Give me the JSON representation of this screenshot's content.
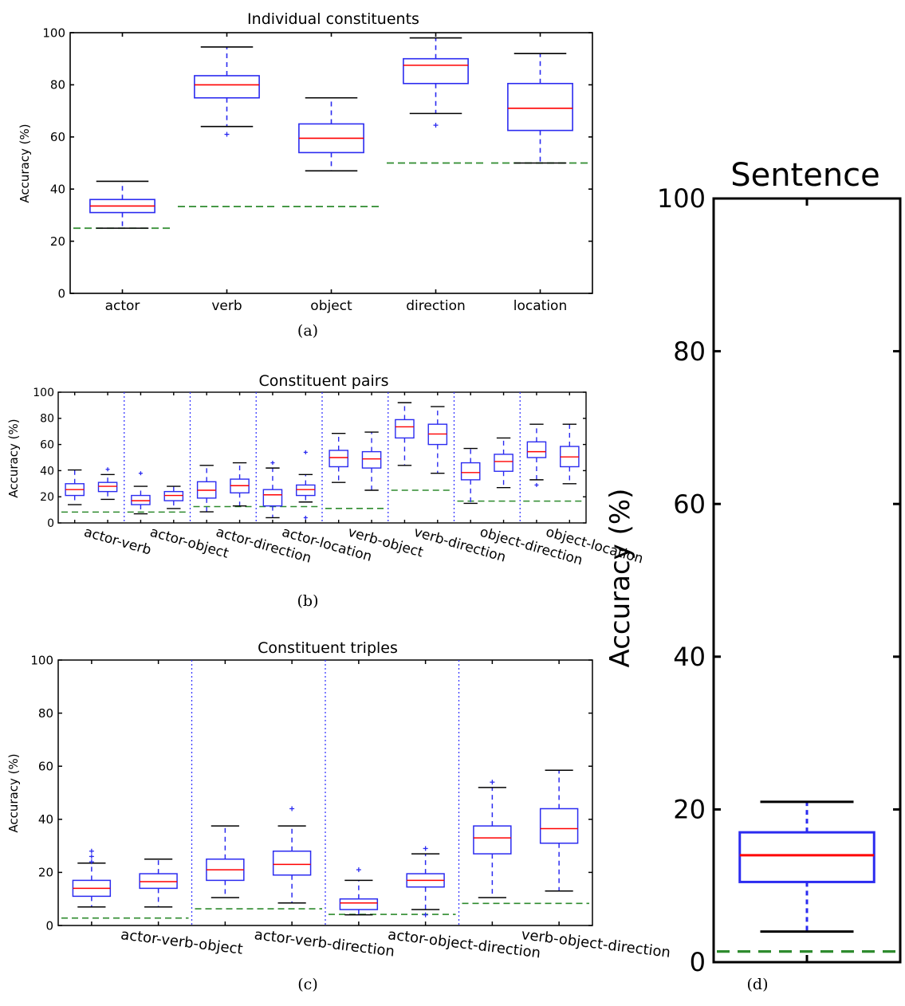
{
  "chart_data": [
    {
      "panel": "a",
      "type": "box",
      "title": "Individual constituents",
      "ylabel": "Accuracy (%)",
      "ylim": [
        0,
        100
      ],
      "yticks": [
        "0",
        "20",
        "40",
        "60",
        "80",
        "100"
      ],
      "caption": "(a)",
      "categories": [
        "actor",
        "verb",
        "object",
        "direction",
        "location"
      ],
      "boxes": [
        {
          "wlo": 25,
          "q1": 31,
          "med": 33.5,
          "q3": 36,
          "whi": 43,
          "outliers": []
        },
        {
          "wlo": 64,
          "q1": 75,
          "med": 80,
          "q3": 83.5,
          "whi": 94.5,
          "outliers": [
            61
          ]
        },
        {
          "wlo": 47,
          "q1": 54,
          "med": 59.5,
          "q3": 65,
          "whi": 75,
          "outliers": []
        },
        {
          "wlo": 69,
          "q1": 80.5,
          "med": 87.5,
          "q3": 90,
          "whi": 98,
          "outliers": [
            64.5
          ]
        },
        {
          "wlo": 50,
          "q1": 62.5,
          "med": 71,
          "q3": 80.5,
          "whi": 92,
          "outliers": []
        }
      ],
      "chance": [
        25,
        33.3,
        33.3,
        50,
        50
      ]
    },
    {
      "panel": "b",
      "type": "box",
      "title": "Constituent pairs",
      "ylabel": "Accuracy (%)",
      "ylim": [
        0,
        100
      ],
      "yticks": [
        "0",
        "20",
        "40",
        "60",
        "80",
        "100"
      ],
      "caption": "(b)",
      "categories": [
        "actor-verb",
        "actor-object",
        "actor-direction",
        "actor-location",
        "verb-object",
        "verb-direction",
        "object-direction",
        "object-location"
      ],
      "boxes": [
        {
          "wlo": 14,
          "q1": 21,
          "med": 25.5,
          "q3": 30,
          "whi": 40.5,
          "outliers": []
        },
        {
          "wlo": 18,
          "q1": 24,
          "med": 28,
          "q3": 31,
          "whi": 37,
          "outliers": [
            41
          ]
        },
        {
          "wlo": 7,
          "q1": 14,
          "med": 17,
          "q3": 21,
          "whi": 28,
          "outliers": [
            38
          ]
        },
        {
          "wlo": 11,
          "q1": 17,
          "med": 21,
          "q3": 24,
          "whi": 28,
          "outliers": []
        },
        {
          "wlo": 8.5,
          "q1": 19,
          "med": 25,
          "q3": 31.5,
          "whi": 44,
          "outliers": []
        },
        {
          "wlo": 13,
          "q1": 23,
          "med": 28.5,
          "q3": 33.5,
          "whi": 46,
          "outliers": []
        },
        {
          "wlo": 4,
          "q1": 13,
          "med": 21.5,
          "q3": 25.5,
          "whi": 42,
          "outliers": [
            46
          ]
        },
        {
          "wlo": 16,
          "q1": 21,
          "med": 25.5,
          "q3": 29,
          "whi": 37,
          "outliers": [
            54,
            4
          ]
        },
        {
          "wlo": 31,
          "q1": 43,
          "med": 50,
          "q3": 55.5,
          "whi": 68.5,
          "outliers": []
        },
        {
          "wlo": 25,
          "q1": 42,
          "med": 49,
          "q3": 54.5,
          "whi": 69.5,
          "outliers": []
        },
        {
          "wlo": 44,
          "q1": 65,
          "med": 73.5,
          "q3": 79,
          "whi": 92,
          "outliers": []
        },
        {
          "wlo": 38,
          "q1": 60,
          "med": 68,
          "q3": 75.5,
          "whi": 89,
          "outliers": []
        },
        {
          "wlo": 15,
          "q1": 33,
          "med": 38.5,
          "q3": 46,
          "whi": 57,
          "outliers": []
        },
        {
          "wlo": 27,
          "q1": 39.5,
          "med": 47,
          "q3": 52.5,
          "whi": 65,
          "outliers": []
        },
        {
          "wlo": 33,
          "q1": 50,
          "med": 54.5,
          "q3": 62,
          "whi": 75.5,
          "outliers": [
            29
          ]
        },
        {
          "wlo": 30,
          "q1": 43,
          "med": 50.5,
          "q3": 58.5,
          "whi": 75.5,
          "outliers": []
        }
      ],
      "chance": [
        8.3,
        8.3,
        12.5,
        12.5,
        11.1,
        25,
        16.7,
        16.7
      ]
    },
    {
      "panel": "c",
      "type": "box",
      "title": "Constituent triples",
      "ylabel": "Accuracy (%)",
      "ylim": [
        0,
        100
      ],
      "yticks": [
        "0",
        "20",
        "40",
        "60",
        "80",
        "100"
      ],
      "caption": "(c)",
      "categories": [
        "actor-verb-object",
        "actor-verb-direction",
        "actor-object-direction",
        "verb-object-direction"
      ],
      "boxes": [
        {
          "wlo": 7,
          "q1": 11,
          "med": 14,
          "q3": 17,
          "whi": 23.5,
          "outliers": [
            28,
            26,
            24
          ]
        },
        {
          "wlo": 7,
          "q1": 14,
          "med": 16.5,
          "q3": 19.5,
          "whi": 25,
          "outliers": []
        },
        {
          "wlo": 10.5,
          "q1": 17,
          "med": 21,
          "q3": 25,
          "whi": 37.5,
          "outliers": []
        },
        {
          "wlo": 8.5,
          "q1": 19,
          "med": 23,
          "q3": 28,
          "whi": 37.5,
          "outliers": [
            44
          ]
        },
        {
          "wlo": 4,
          "q1": 6,
          "med": 8.5,
          "q3": 10,
          "whi": 17,
          "outliers": [
            21
          ]
        },
        {
          "wlo": 6,
          "q1": 14.5,
          "med": 17,
          "q3": 19.5,
          "whi": 27,
          "outliers": [
            29,
            4
          ]
        },
        {
          "wlo": 10.5,
          "q1": 27,
          "med": 33,
          "q3": 37.5,
          "whi": 52,
          "outliers": [
            54
          ]
        },
        {
          "wlo": 13,
          "q1": 31,
          "med": 36.5,
          "q3": 44,
          "whi": 58.5,
          "outliers": []
        }
      ],
      "chance": [
        2.8,
        6.3,
        4.2,
        8.3
      ]
    },
    {
      "panel": "d",
      "type": "box",
      "title": "Sentence",
      "ylabel": "Accuracy (%)",
      "ylim": [
        0,
        100
      ],
      "yticks": [
        "0",
        "20",
        "40",
        "60",
        "80",
        "100"
      ],
      "caption": "(d)",
      "categories": [],
      "boxes": [
        {
          "wlo": 4,
          "q1": 10.5,
          "med": 14,
          "q3": 17,
          "whi": 21,
          "outliers": []
        }
      ],
      "chance": [
        1.4
      ]
    }
  ],
  "colors": {
    "box": "#2b2bf0",
    "median": "#ff0000",
    "chance": "#2e8b2e",
    "separator": "#3a3aff",
    "whisker_cap": "#000000",
    "axis": "#000000"
  }
}
